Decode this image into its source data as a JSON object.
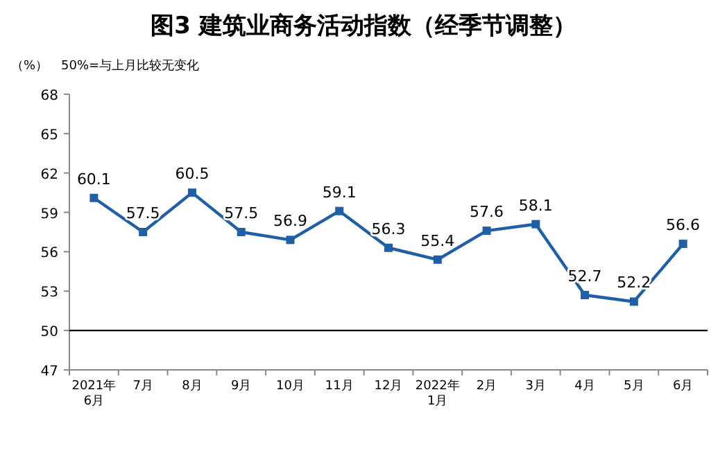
{
  "chart_data": {
    "type": "line",
    "title": "图3  建筑业商务活动指数（经季节调整）",
    "ylabel": "（%）",
    "annotations": [
      "50%=与上月比较无变化"
    ],
    "categories": [
      "2021年\n6月",
      "7月",
      "8月",
      "9月",
      "10月",
      "11月",
      "12月",
      "2022年\n1月",
      "2月",
      "3月",
      "4月",
      "5月",
      "6月"
    ],
    "series": [
      {
        "color": "#1f5fa8",
        "values": [
          60.1,
          57.5,
          60.5,
          57.5,
          56.9,
          59.1,
          56.3,
          55.4,
          57.6,
          58.1,
          52.7,
          52.2,
          56.6
        ]
      }
    ],
    "ylim": [
      47,
      68
    ],
    "yticks": [
      47,
      50,
      53,
      56,
      59,
      62,
      65,
      68
    ],
    "ref_lines": [
      {
        "axis": "y",
        "value": 50,
        "color": "#000000"
      }
    ],
    "data_labels": true,
    "marker": "square",
    "grid": false
  }
}
